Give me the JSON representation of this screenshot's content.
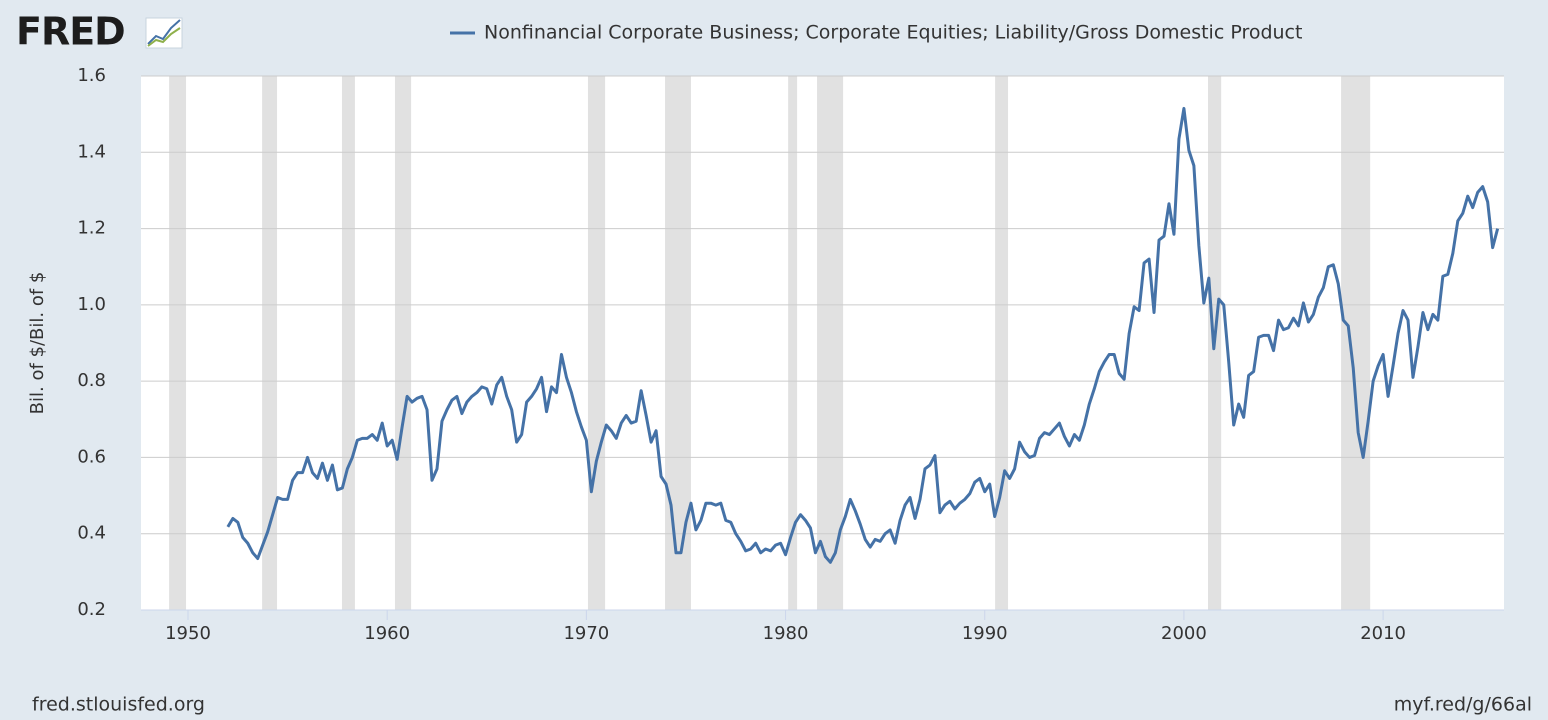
{
  "header": {
    "logo": "FRED"
  },
  "footer": {
    "left": "fred.stlouisfed.org",
    "right": "myf.red/g/66al"
  },
  "chart_data": {
    "type": "line",
    "y_label": "Bil. of $/Bil. of $",
    "xlim": [
      1947.64,
      2016.07
    ],
    "ylim": [
      0.2,
      1.6
    ],
    "xticks": [
      1950,
      1960,
      1970,
      1980,
      1990,
      2000,
      2010
    ],
    "yticks": [
      0.2,
      0.4,
      0.6,
      0.8,
      {
        "value": 1,
        "label": "1.0"
      },
      1.2,
      1.4,
      1.6
    ],
    "grid": true,
    "recession_color": "#e1e1e1",
    "recessions": [
      [
        1949.05,
        1949.9
      ],
      [
        1953.72,
        1954.47
      ],
      [
        1957.73,
        1958.38
      ],
      [
        1960.39,
        1961.2
      ],
      [
        1970.08,
        1970.94
      ],
      [
        1973.95,
        1975.25
      ],
      [
        1980.13,
        1980.58
      ],
      [
        1981.58,
        1982.89
      ],
      [
        1990.52,
        1991.17
      ],
      [
        2001.21,
        2001.87
      ],
      [
        2007.89,
        2009.35
      ]
    ],
    "x": [
      1952,
      1952.25,
      1952.5,
      1952.75,
      1953,
      1953.25,
      1953.5,
      1953.75,
      1954,
      1954.25,
      1954.5,
      1954.75,
      1955,
      1955.25,
      1955.5,
      1955.75,
      1956,
      1956.25,
      1956.5,
      1956.75,
      1957,
      1957.25,
      1957.5,
      1957.75,
      1958,
      1958.25,
      1958.5,
      1958.75,
      1959,
      1959.25,
      1959.5,
      1959.75,
      1960,
      1960.25,
      1960.5,
      1960.75,
      1961,
      1961.25,
      1961.5,
      1961.75,
      1962,
      1962.25,
      1962.5,
      1962.75,
      1963,
      1963.25,
      1963.5,
      1963.75,
      1964,
      1964.25,
      1964.5,
      1964.75,
      1965,
      1965.25,
      1965.5,
      1965.75,
      1966,
      1966.25,
      1966.5,
      1966.75,
      1967,
      1967.25,
      1967.5,
      1967.75,
      1968,
      1968.25,
      1968.5,
      1968.75,
      1969,
      1969.25,
      1969.5,
      1969.75,
      1970,
      1970.25,
      1970.5,
      1970.75,
      1971,
      1971.25,
      1971.5,
      1971.75,
      1972,
      1972.25,
      1972.5,
      1972.75,
      1973,
      1973.25,
      1973.5,
      1973.75,
      1974,
      1974.25,
      1974.5,
      1974.75,
      1975,
      1975.25,
      1975.5,
      1975.75,
      1976,
      1976.25,
      1976.5,
      1976.75,
      1977,
      1977.25,
      1977.5,
      1977.75,
      1978,
      1978.25,
      1978.5,
      1978.75,
      1979,
      1979.25,
      1979.5,
      1979.75,
      1980,
      1980.25,
      1980.5,
      1980.75,
      1981,
      1981.25,
      1981.5,
      1981.75,
      1982,
      1982.25,
      1982.5,
      1982.75,
      1983,
      1983.25,
      1983.5,
      1983.75,
      1984,
      1984.25,
      1984.5,
      1984.75,
      1985,
      1985.25,
      1985.5,
      1985.75,
      1986,
      1986.25,
      1986.5,
      1986.75,
      1987,
      1987.25,
      1987.5,
      1987.75,
      1988,
      1988.25,
      1988.5,
      1988.75,
      1989,
      1989.25,
      1989.5,
      1989.75,
      1990,
      1990.25,
      1990.5,
      1990.75,
      1991,
      1991.25,
      1991.5,
      1991.75,
      1992,
      1992.25,
      1992.5,
      1992.75,
      1993,
      1993.25,
      1993.5,
      1993.75,
      1994,
      1994.25,
      1994.5,
      1994.75,
      1995,
      1995.25,
      1995.5,
      1995.75,
      1996,
      1996.25,
      1996.5,
      1996.75,
      1997,
      1997.25,
      1997.5,
      1997.75,
      1998,
      1998.25,
      1998.5,
      1998.75,
      1999,
      1999.25,
      1999.5,
      1999.75,
      2000,
      2000.25,
      2000.5,
      2000.75,
      2001,
      2001.25,
      2001.5,
      2001.75,
      2002,
      2002.25,
      2002.5,
      2002.75,
      2003,
      2003.25,
      2003.5,
      2003.75,
      2004,
      2004.25,
      2004.5,
      2004.75,
      2005,
      2005.25,
      2005.5,
      2005.75,
      2006,
      2006.25,
      2006.5,
      2006.75,
      2007,
      2007.25,
      2007.5,
      2007.75,
      2008,
      2008.25,
      2008.5,
      2008.75,
      2009,
      2009.25,
      2009.5,
      2009.75,
      2010,
      2010.25,
      2010.5,
      2010.75,
      2011,
      2011.25,
      2011.5,
      2011.75,
      2012,
      2012.25,
      2012.5,
      2012.75,
      2013,
      2013.25,
      2013.5,
      2013.75,
      2014,
      2014.25,
      2014.5,
      2014.75,
      2015,
      2015.25,
      2015.5,
      2015.75
    ],
    "series": [
      {
        "name": "Nonfinancial Corporate Business; Corporate Equities; Liability/Gross Domestic Product",
        "color": "#4572a7",
        "values": [
          0.418,
          0.44,
          0.43,
          0.39,
          0.375,
          0.35,
          0.335,
          0.37,
          0.405,
          0.45,
          0.495,
          0.49,
          0.49,
          0.54,
          0.56,
          0.56,
          0.6,
          0.56,
          0.545,
          0.585,
          0.54,
          0.58,
          0.515,
          0.52,
          0.57,
          0.6,
          0.645,
          0.65,
          0.65,
          0.66,
          0.645,
          0.69,
          0.63,
          0.645,
          0.595,
          0.68,
          0.76,
          0.745,
          0.755,
          0.76,
          0.725,
          0.54,
          0.57,
          0.695,
          0.725,
          0.75,
          0.76,
          0.715,
          0.745,
          0.76,
          0.77,
          0.785,
          0.78,
          0.74,
          0.79,
          0.81,
          0.76,
          0.725,
          0.64,
          0.66,
          0.745,
          0.76,
          0.78,
          0.81,
          0.72,
          0.785,
          0.77,
          0.87,
          0.81,
          0.77,
          0.72,
          0.68,
          0.645,
          0.51,
          0.59,
          0.64,
          0.685,
          0.67,
          0.65,
          0.69,
          0.71,
          0.69,
          0.695,
          0.775,
          0.71,
          0.64,
          0.67,
          0.55,
          0.53,
          0.475,
          0.35,
          0.35,
          0.43,
          0.48,
          0.41,
          0.435,
          0.48,
          0.48,
          0.475,
          0.48,
          0.435,
          0.43,
          0.4,
          0.38,
          0.355,
          0.36,
          0.375,
          0.35,
          0.36,
          0.355,
          0.37,
          0.375,
          0.345,
          0.39,
          0.43,
          0.45,
          0.435,
          0.415,
          0.35,
          0.38,
          0.34,
          0.325,
          0.35,
          0.41,
          0.445,
          0.49,
          0.46,
          0.425,
          0.385,
          0.365,
          0.385,
          0.38,
          0.4,
          0.41,
          0.375,
          0.435,
          0.475,
          0.495,
          0.44,
          0.49,
          0.57,
          0.58,
          0.605,
          0.455,
          0.475,
          0.485,
          0.465,
          0.48,
          0.49,
          0.505,
          0.535,
          0.545,
          0.51,
          0.53,
          0.445,
          0.495,
          0.565,
          0.545,
          0.57,
          0.64,
          0.615,
          0.6,
          0.605,
          0.65,
          0.665,
          0.66,
          0.675,
          0.69,
          0.655,
          0.63,
          0.66,
          0.645,
          0.685,
          0.74,
          0.78,
          0.825,
          0.85,
          0.87,
          0.87,
          0.82,
          0.805,
          0.925,
          0.995,
          0.985,
          1.11,
          1.12,
          0.98,
          1.17,
          1.18,
          1.265,
          1.185,
          1.435,
          1.515,
          1.405,
          1.365,
          1.155,
          1.005,
          1.07,
          0.885,
          1.015,
          1.0,
          0.85,
          0.685,
          0.74,
          0.705,
          0.815,
          0.825,
          0.915,
          0.92,
          0.92,
          0.88,
          0.96,
          0.935,
          0.94,
          0.965,
          0.945,
          1.005,
          0.955,
          0.975,
          1.02,
          1.045,
          1.1,
          1.105,
          1.055,
          0.96,
          0.945,
          0.835,
          0.665,
          0.6,
          0.695,
          0.8,
          0.84,
          0.87,
          0.76,
          0.84,
          0.925,
          0.985,
          0.96,
          0.81,
          0.89,
          0.98,
          0.935,
          0.975,
          0.96,
          1.075,
          1.08,
          1.135,
          1.22,
          1.24,
          1.285,
          1.255,
          1.295,
          1.31,
          1.27,
          1.15,
          1.2
        ]
      }
    ]
  }
}
